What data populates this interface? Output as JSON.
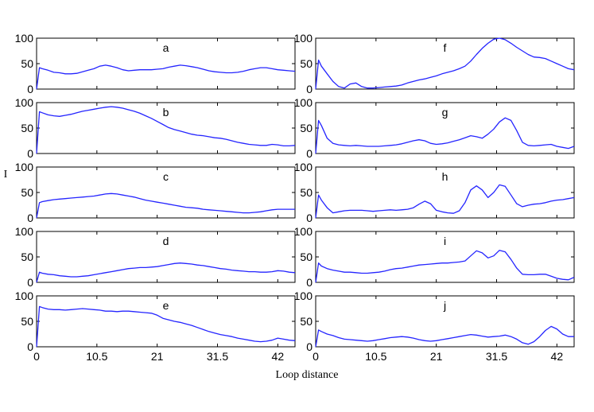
{
  "chart_data": {
    "type": "line",
    "xlabel": "Loop distance",
    "ylabel": "I",
    "xlim": [
      0,
      45
    ],
    "ylim": [
      0,
      100
    ],
    "x_ticks": [
      0,
      10.5,
      21,
      31.5,
      42
    ],
    "x_tick_labels": [
      "0",
      "10.5",
      "21",
      "31.5",
      "42"
    ],
    "y_ticks": [
      0,
      50,
      100
    ],
    "y_tick_labels": [
      "0",
      "50",
      "100"
    ],
    "x": [
      0,
      0.5,
      1,
      2,
      3,
      4,
      5,
      6,
      7,
      8,
      9,
      10,
      11,
      12,
      13,
      14,
      15,
      16,
      17,
      18,
      19,
      20,
      21,
      22,
      23,
      24,
      25,
      26,
      27,
      28,
      29,
      30,
      31,
      32,
      33,
      34,
      35,
      36,
      37,
      38,
      39,
      40,
      41,
      42,
      43,
      44,
      45
    ],
    "panels": [
      {
        "name": "a",
        "values": [
          0,
          42,
          40,
          37,
          33,
          32,
          30,
          30,
          31,
          34,
          37,
          40,
          45,
          47,
          45,
          42,
          38,
          36,
          37,
          38,
          38,
          38,
          39,
          40,
          43,
          45,
          47,
          46,
          44,
          42,
          39,
          36,
          34,
          33,
          32,
          32,
          33,
          35,
          38,
          40,
          42,
          42,
          40,
          38,
          37,
          36,
          35
        ]
      },
      {
        "name": "b",
        "values": [
          0,
          82,
          80,
          76,
          74,
          73,
          75,
          77,
          80,
          83,
          85,
          87,
          89,
          91,
          92,
          91,
          89,
          86,
          83,
          79,
          74,
          69,
          63,
          57,
          51,
          47,
          44,
          41,
          38,
          36,
          35,
          33,
          31,
          30,
          28,
          25,
          22,
          20,
          18,
          17,
          16,
          16,
          18,
          17,
          15,
          15,
          16
        ]
      },
      {
        "name": "c",
        "values": [
          0,
          30,
          32,
          34,
          36,
          37,
          38,
          39,
          40,
          41,
          42,
          43,
          45,
          47,
          48,
          47,
          45,
          43,
          41,
          38,
          35,
          33,
          31,
          29,
          27,
          25,
          23,
          21,
          20,
          19,
          17,
          16,
          15,
          14,
          13,
          12,
          11,
          10,
          10,
          11,
          12,
          14,
          16,
          17,
          17,
          17,
          17
        ]
      },
      {
        "name": "d",
        "values": [
          0,
          20,
          18,
          16,
          15,
          13,
          12,
          11,
          11,
          12,
          13,
          15,
          17,
          19,
          21,
          23,
          25,
          27,
          28,
          29,
          29,
          30,
          31,
          33,
          35,
          37,
          38,
          37,
          36,
          34,
          33,
          31,
          29,
          27,
          26,
          24,
          23,
          22,
          21,
          21,
          20,
          20,
          21,
          23,
          22,
          20,
          19
        ]
      },
      {
        "name": "e",
        "values": [
          0,
          79,
          77,
          74,
          73,
          73,
          72,
          73,
          74,
          75,
          74,
          73,
          72,
          70,
          70,
          69,
          70,
          70,
          69,
          68,
          67,
          66,
          62,
          56,
          53,
          50,
          48,
          45,
          42,
          38,
          34,
          30,
          27,
          24,
          22,
          20,
          17,
          15,
          13,
          11,
          10,
          11,
          13,
          17,
          15,
          13,
          12
        ]
      },
      {
        "name": "f",
        "values": [
          0,
          57,
          45,
          30,
          15,
          5,
          2,
          10,
          12,
          5,
          2,
          2,
          3,
          4,
          5,
          6,
          8,
          12,
          15,
          18,
          20,
          23,
          26,
          30,
          33,
          36,
          40,
          45,
          55,
          68,
          80,
          90,
          98,
          100,
          97,
          90,
          82,
          75,
          68,
          63,
          62,
          60,
          55,
          50,
          45,
          40,
          38
        ]
      },
      {
        "name": "g",
        "values": [
          0,
          65,
          55,
          30,
          20,
          17,
          16,
          15,
          16,
          15,
          14,
          14,
          14,
          15,
          16,
          17,
          19,
          22,
          25,
          27,
          25,
          20,
          18,
          19,
          21,
          24,
          27,
          31,
          35,
          33,
          30,
          38,
          48,
          62,
          70,
          65,
          45,
          22,
          16,
          15,
          16,
          17,
          18,
          14,
          12,
          10,
          14
        ]
      },
      {
        "name": "h",
        "values": [
          0,
          45,
          35,
          20,
          10,
          12,
          14,
          15,
          15,
          15,
          14,
          13,
          14,
          15,
          16,
          15,
          16,
          17,
          20,
          27,
          33,
          28,
          15,
          12,
          10,
          9,
          14,
          30,
          55,
          63,
          55,
          40,
          50,
          65,
          62,
          45,
          28,
          22,
          25,
          27,
          28,
          30,
          33,
          35,
          36,
          38,
          40
        ]
      },
      {
        "name": "i",
        "values": [
          0,
          38,
          32,
          27,
          24,
          22,
          20,
          20,
          19,
          18,
          18,
          19,
          20,
          22,
          25,
          27,
          28,
          30,
          32,
          34,
          35,
          36,
          37,
          38,
          38,
          39,
          40,
          42,
          52,
          62,
          58,
          48,
          52,
          63,
          60,
          45,
          28,
          16,
          15,
          15,
          16,
          16,
          12,
          8,
          6,
          5,
          10
        ]
      },
      {
        "name": "j",
        "values": [
          0,
          33,
          30,
          25,
          22,
          18,
          15,
          14,
          13,
          12,
          11,
          12,
          14,
          16,
          18,
          19,
          20,
          19,
          17,
          14,
          12,
          11,
          12,
          14,
          16,
          18,
          20,
          22,
          24,
          23,
          21,
          19,
          20,
          21,
          23,
          20,
          15,
          8,
          5,
          10,
          20,
          32,
          40,
          35,
          25,
          20,
          20
        ]
      }
    ]
  }
}
